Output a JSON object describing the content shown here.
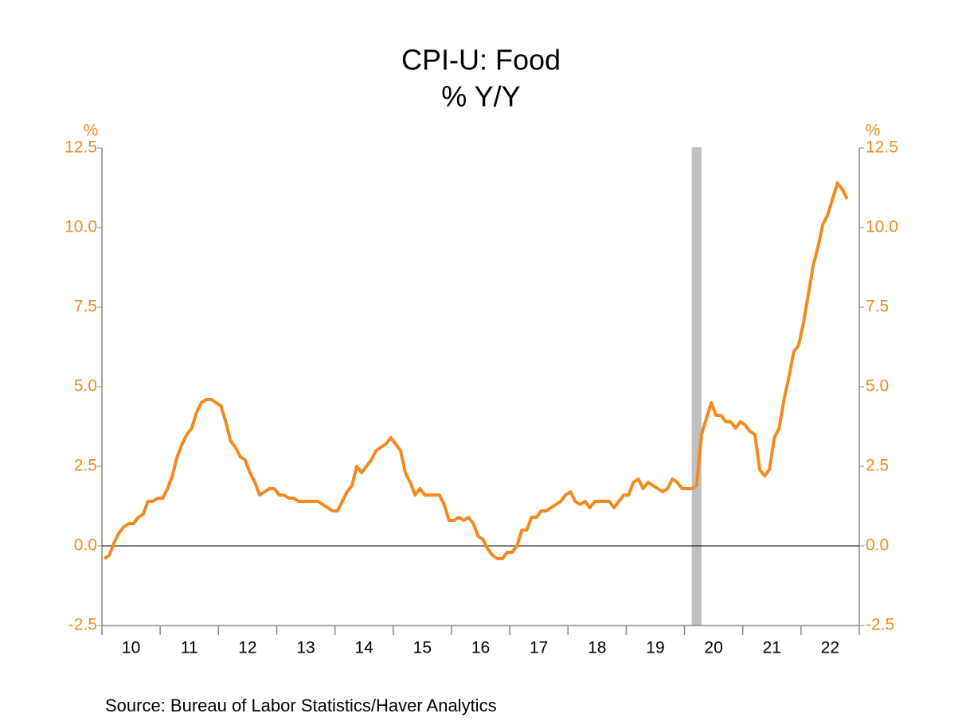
{
  "chart_data": {
    "type": "line",
    "title": "CPI-U: Food",
    "subtitle": "% Y/Y",
    "y_label": "%",
    "y2_label": "%",
    "source": "Source:  Bureau of Labor Statistics/Haver Analytics",
    "color": "#f28a1f",
    "categories": [
      "10",
      "11",
      "12",
      "13",
      "14",
      "15",
      "16",
      "17",
      "18",
      "19",
      "20",
      "21",
      "22"
    ],
    "values": [
      [
        -0.4,
        -0.3,
        0.1,
        0.4,
        0.6,
        0.7,
        0.7,
        0.9,
        1.0,
        1.4,
        1.4,
        1.5
      ],
      [
        1.5,
        1.8,
        2.2,
        2.8,
        3.2,
        3.5,
        3.7,
        4.2,
        4.5,
        4.6,
        4.6,
        4.5
      ],
      [
        4.4,
        3.9,
        3.3,
        3.1,
        2.8,
        2.7,
        2.3,
        2.0,
        1.6,
        1.7,
        1.8,
        1.8
      ],
      [
        1.6,
        1.6,
        1.5,
        1.5,
        1.4,
        1.4,
        1.4,
        1.4,
        1.4,
        1.3,
        1.2,
        1.1
      ],
      [
        1.1,
        1.4,
        1.7,
        1.9,
        2.5,
        2.3,
        2.5,
        2.7,
        3.0,
        3.1,
        3.2,
        3.4
      ],
      [
        3.2,
        3.0,
        2.3,
        2.0,
        1.6,
        1.8,
        1.6,
        1.6,
        1.6,
        1.6,
        1.3,
        0.8
      ],
      [
        0.8,
        0.9,
        0.8,
        0.9,
        0.7,
        0.3,
        0.2,
        -0.1,
        -0.3,
        -0.4,
        -0.4,
        -0.2
      ],
      [
        -0.2,
        0.0,
        0.5,
        0.5,
        0.9,
        0.9,
        1.1,
        1.1,
        1.2,
        1.3,
        1.4,
        1.6
      ],
      [
        1.7,
        1.4,
        1.3,
        1.4,
        1.2,
        1.4,
        1.4,
        1.4,
        1.4,
        1.2,
        1.4,
        1.6
      ],
      [
        1.6,
        2.0,
        2.1,
        1.8,
        2.0,
        1.9,
        1.8,
        1.7,
        1.8,
        2.1,
        2.0,
        1.8
      ],
      [
        1.8,
        1.8,
        1.9,
        3.5,
        4.0,
        4.5,
        4.1,
        4.1,
        3.9,
        3.9,
        3.7,
        3.9
      ],
      [
        3.8,
        3.6,
        3.5,
        2.4,
        2.2,
        2.4,
        3.4,
        3.7,
        4.6,
        5.3,
        6.1,
        6.3
      ],
      [
        7.0,
        7.9,
        8.8,
        9.4,
        10.1,
        10.4,
        10.9,
        11.4,
        11.2,
        10.9
      ]
    ],
    "recession_band": {
      "year": "20",
      "start_month": 2,
      "end_month": 4
    },
    "ylim": [
      -2.5,
      12.5
    ],
    "yticks": [
      -2.5,
      {
        "value": 0,
        "label": "0.0"
      },
      2.5,
      {
        "value": 5,
        "label": "5.0"
      },
      7.5,
      {
        "value": 10,
        "label": "10.0"
      },
      12.5
    ],
    "y2lim": [
      -2.5,
      12.5
    ],
    "y2ticks": [
      -2.5,
      {
        "value": 0,
        "label": "0.0"
      },
      2.5,
      {
        "value": 5,
        "label": "5.0"
      },
      7.5,
      {
        "value": 10,
        "label": "10.0"
      },
      12.5
    ]
  }
}
